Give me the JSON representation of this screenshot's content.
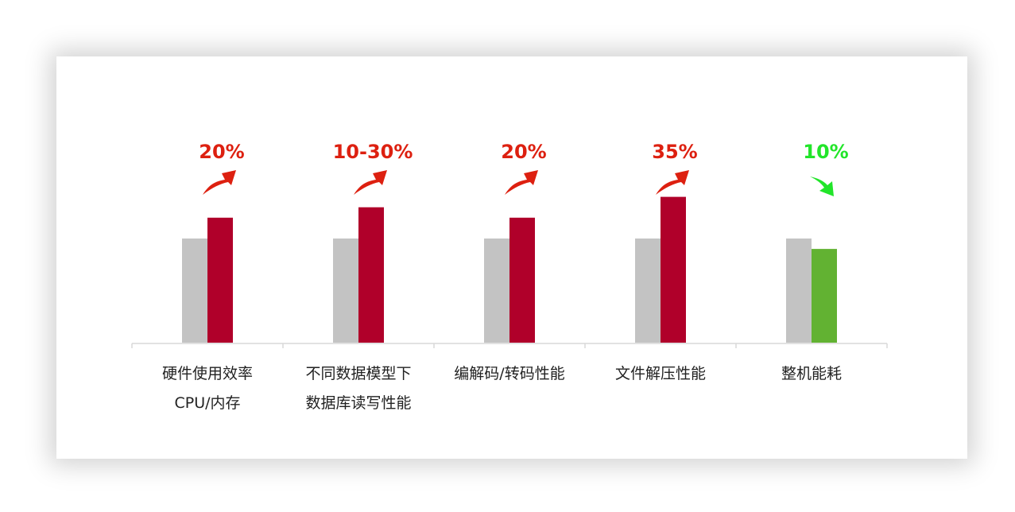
{
  "chart_data": {
    "type": "bar",
    "categories": [
      [
        "硬件使用效率",
        "CPU/内存"
      ],
      [
        "不同数据模型下",
        "数据库读写性能"
      ],
      [
        "编解码/转码性能"
      ],
      [
        "文件解压性能"
      ],
      [
        "整机能耗"
      ]
    ],
    "series": [
      {
        "values": [
          1.0,
          1.0,
          1.0,
          1.0,
          1.0
        ],
        "color": "#c3c3c3"
      },
      {
        "values": [
          1.2,
          1.3,
          1.2,
          1.4,
          0.9
        ],
        "colors": [
          "#b0002a",
          "#b0002a",
          "#b0002a",
          "#b0002a",
          "#62b232"
        ]
      }
    ],
    "annotations": [
      {
        "text": "20%",
        "direction": "up",
        "color": "#dd2010"
      },
      {
        "text": "10-30%",
        "direction": "up",
        "color": "#dd2010"
      },
      {
        "text": "20%",
        "direction": "up",
        "color": "#dd2010"
      },
      {
        "text": "35%",
        "direction": "up",
        "color": "#dd2010"
      },
      {
        "text": "10%",
        "direction": "down",
        "color": "#22e52a"
      }
    ],
    "ylim": [
      0,
      1.5
    ],
    "grid": false,
    "legend": "none"
  }
}
